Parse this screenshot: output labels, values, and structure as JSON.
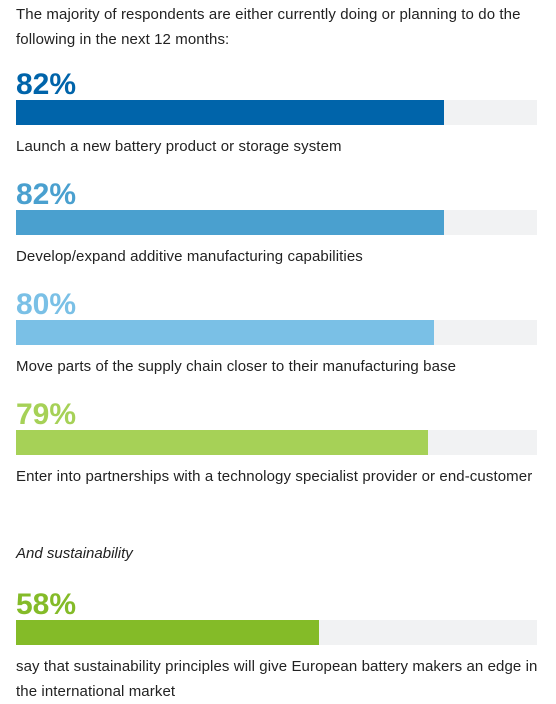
{
  "intro": "The majority of respondents are either currently doing or planning to do the following in the next 12 months:",
  "subheading": "And sustainability",
  "chart_data": {
    "type": "bar",
    "orientation": "horizontal",
    "xlim": [
      0,
      100
    ],
    "items": [
      {
        "value": 82,
        "value_label": "82%",
        "label": "Launch a new battery product or storage system",
        "color": "#0064aa"
      },
      {
        "value": 82,
        "value_label": "82%",
        "label": "Develop/expand additive manufacturing capabilities",
        "color": "#4aa0cf"
      },
      {
        "value": 80,
        "value_label": "80%",
        "label": "Move parts of the supply chain closer to their manufacturing base",
        "color": "#7ac0e6"
      },
      {
        "value": 79,
        "value_label": "79%",
        "label": "Enter into partnerships with a technology specialist provider or end-customer",
        "color": "#a6d157"
      },
      {
        "value": 58,
        "value_label": "58%",
        "label": "say that sustainability principles will give European battery makers an edge in the international market",
        "color": "#84bb28"
      }
    ]
  }
}
